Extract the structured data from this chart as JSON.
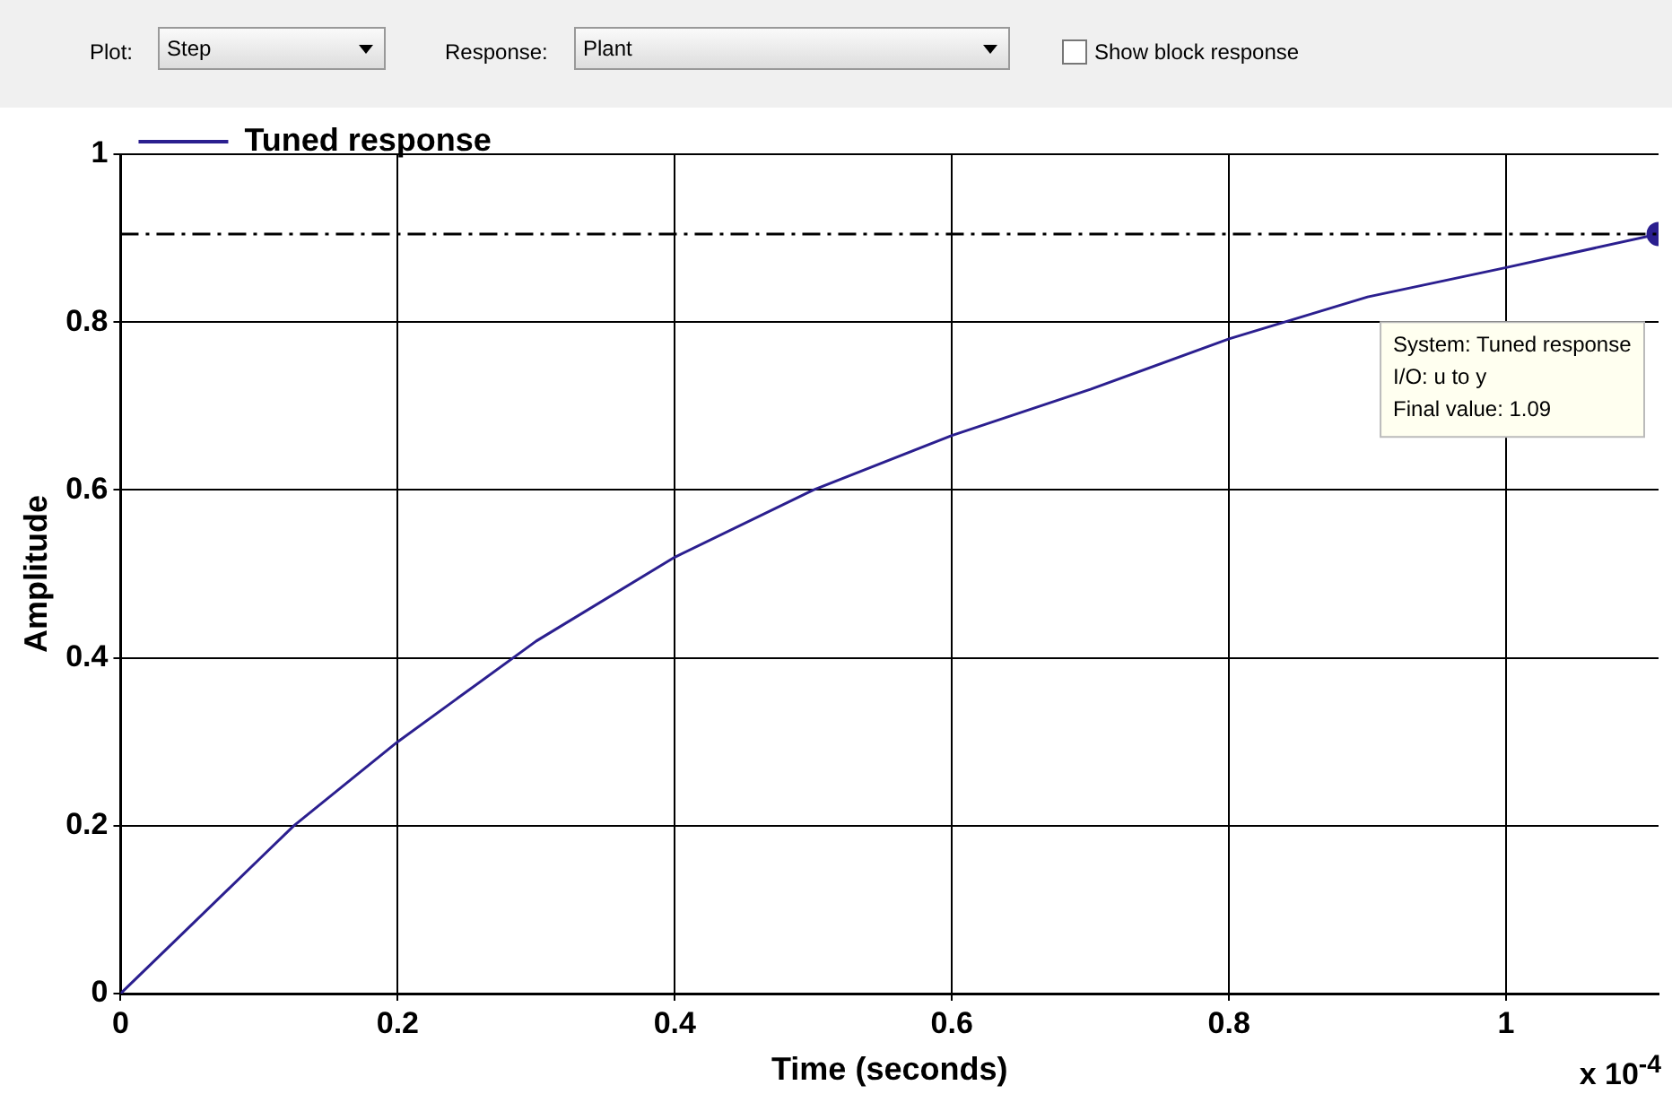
{
  "chart_data": {
    "type": "line",
    "xlabel": "Time (seconds)",
    "ylabel": "Amplitude",
    "legend": "top left",
    "grid": true,
    "line_style": "solid",
    "marker": "none",
    "xlim": [
      0,
      1.11
    ],
    "xticks": [
      0,
      0.2,
      0.4,
      0.6,
      0.8,
      1
    ],
    "ylim": [
      0,
      1
    ],
    "yticks": [
      0,
      0.2,
      0.4,
      0.6,
      0.8,
      1
    ],
    "x": [
      0,
      0.05,
      0.1,
      0.125,
      0.2,
      0.3,
      0.4,
      0.5,
      0.6,
      0.7,
      0.8,
      0.9,
      1,
      1.11
    ],
    "series": [
      {
        "name": "Tuned response",
        "color": "#2b1f8f",
        "values": [
          0,
          0.08,
          0.16,
          0.2,
          0.3,
          0.42,
          0.52,
          0.6,
          0.665,
          0.72,
          0.78,
          0.83,
          0.865,
          0.905
        ]
      },
      {
        "type": "scatter",
        "marker": "circle",
        "color": "#2b1f8f",
        "x": [
          1.11
        ],
        "values": [
          0.905
        ]
      }
    ],
    "ref_lines": [
      {
        "axis": "y",
        "value": 0.905,
        "line_style": "dashdot",
        "color": "#000000"
      }
    ],
    "annotations": [
      "Plot:",
      "Step",
      "Response:",
      "Plant",
      "Show block response",
      "x 10$^{-4}$",
      "System: Tuned response\nI/O: u to y\nFinal value: 1.09"
    ]
  }
}
